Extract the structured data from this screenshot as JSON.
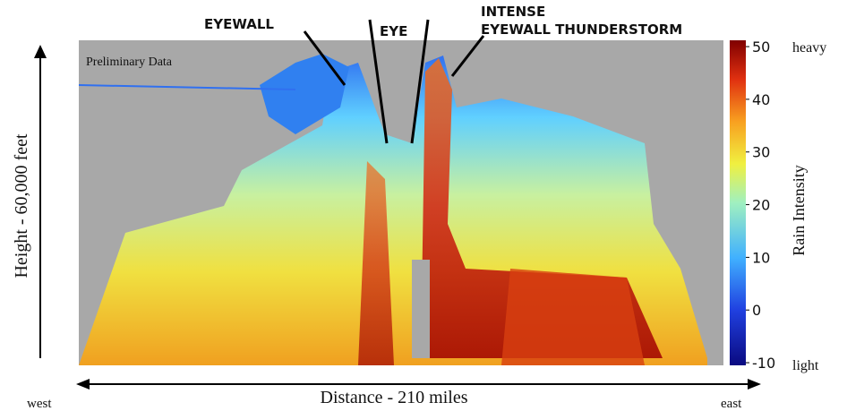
{
  "annotations": {
    "eyewall": "EYEWALL",
    "eye": "EYE",
    "intense": "INTENSE",
    "thunderstorm": "EYEWALL THUNDERSTORM",
    "preliminary": "Preliminary Data"
  },
  "axes": {
    "y_label": "Height - 60,000 feet",
    "x_label": "Distance - 210 miles",
    "west": "west",
    "east": "east"
  },
  "colorbar": {
    "label": "Rain Intensity",
    "top_label": "heavy",
    "bottom_label": "light",
    "range": [
      -10.5,
      51.2
    ],
    "ticks": [
      -10,
      0,
      10,
      20,
      30,
      40,
      50
    ]
  }
}
